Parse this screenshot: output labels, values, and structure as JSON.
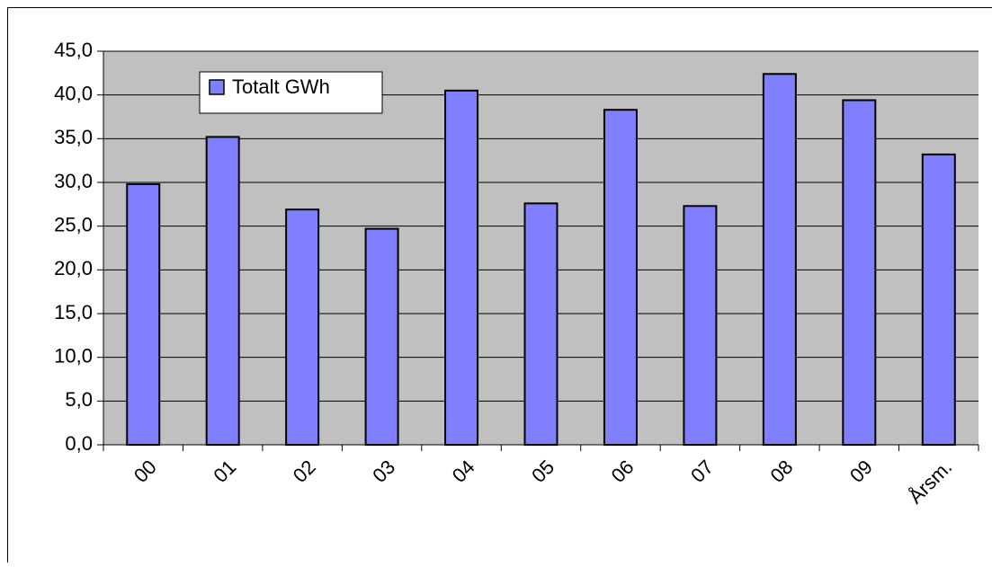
{
  "chart_data": {
    "type": "bar",
    "categories": [
      "00",
      "01",
      "02",
      "03",
      "04",
      "05",
      "06",
      "07",
      "08",
      "09",
      "Årsm."
    ],
    "series": [
      {
        "name": "Totalt GWh",
        "color": "#8080ff",
        "values": [
          29.8,
          35.2,
          26.9,
          24.7,
          40.5,
          27.6,
          38.3,
          27.3,
          42.4,
          39.4,
          33.2
        ]
      }
    ],
    "ylim": [
      0,
      45
    ],
    "yticks": [
      {
        "value": 0,
        "label": "0,0"
      },
      {
        "value": 5,
        "label": "5,0"
      },
      {
        "value": 10,
        "label": "10,0"
      },
      {
        "value": 15,
        "label": "15,0"
      },
      {
        "value": 20,
        "label": "20,0"
      },
      {
        "value": 25,
        "label": "25,0"
      },
      {
        "value": 30,
        "label": "30,0"
      },
      {
        "value": 35,
        "label": "35,0"
      },
      {
        "value": 40,
        "label": "40,0"
      },
      {
        "value": 45,
        "label": "45,0"
      }
    ],
    "grid": true,
    "legend": "upper left"
  }
}
